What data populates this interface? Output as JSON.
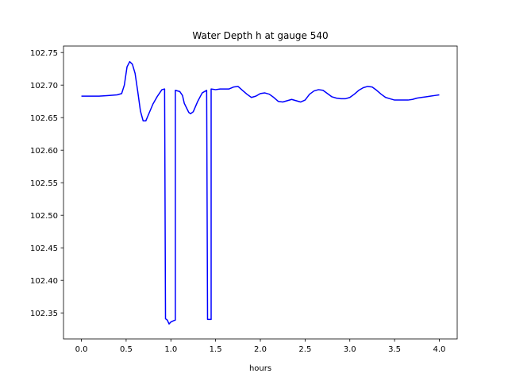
{
  "chart_data": {
    "type": "line",
    "title": "Water Depth h at gauge 540",
    "xlabel": "hours",
    "ylabel": "",
    "xlim": [
      -0.2,
      4.2
    ],
    "ylim": [
      102.31,
      102.76
    ],
    "x_ticks": [
      0.0,
      0.5,
      1.0,
      1.5,
      2.0,
      2.5,
      3.0,
      3.5,
      4.0
    ],
    "x_tick_labels": [
      "0.0",
      "0.5",
      "1.0",
      "1.5",
      "2.0",
      "2.5",
      "3.0",
      "3.5",
      "4.0"
    ],
    "y_ticks": [
      102.35,
      102.4,
      102.45,
      102.5,
      102.55,
      102.6,
      102.65,
      102.7,
      102.75
    ],
    "y_tick_labels": [
      "102.35",
      "102.40",
      "102.45",
      "102.50",
      "102.55",
      "102.60",
      "102.65",
      "102.70",
      "102.75"
    ],
    "grid": false,
    "legend": "none",
    "series": [
      {
        "color": "#0000ff",
        "points": [
          [
            0.0,
            102.683
          ],
          [
            0.1,
            102.683
          ],
          [
            0.2,
            102.683
          ],
          [
            0.3,
            102.684
          ],
          [
            0.4,
            102.685
          ],
          [
            0.45,
            102.687
          ],
          [
            0.48,
            102.7
          ],
          [
            0.51,
            102.728
          ],
          [
            0.54,
            102.736
          ],
          [
            0.57,
            102.732
          ],
          [
            0.6,
            102.718
          ],
          [
            0.63,
            102.69
          ],
          [
            0.66,
            102.66
          ],
          [
            0.69,
            102.645
          ],
          [
            0.72,
            102.645
          ],
          [
            0.76,
            102.658
          ],
          [
            0.8,
            102.671
          ],
          [
            0.85,
            102.683
          ],
          [
            0.9,
            102.693
          ],
          [
            0.93,
            102.694
          ],
          [
            0.94,
            102.341
          ],
          [
            0.96,
            102.339
          ],
          [
            0.98,
            102.333
          ],
          [
            1.0,
            102.336
          ],
          [
            1.03,
            102.338
          ],
          [
            1.05,
            102.339
          ],
          [
            1.05,
            102.692
          ],
          [
            1.1,
            102.69
          ],
          [
            1.13,
            102.684
          ],
          [
            1.15,
            102.672
          ],
          [
            1.2,
            102.658
          ],
          [
            1.22,
            102.656
          ],
          [
            1.25,
            102.659
          ],
          [
            1.3,
            102.675
          ],
          [
            1.35,
            102.688
          ],
          [
            1.4,
            102.692
          ],
          [
            1.41,
            102.34
          ],
          [
            1.45,
            102.34
          ],
          [
            1.45,
            102.694
          ],
          [
            1.5,
            102.693
          ],
          [
            1.55,
            102.694
          ],
          [
            1.6,
            102.694
          ],
          [
            1.65,
            102.694
          ],
          [
            1.7,
            102.697
          ],
          [
            1.75,
            102.698
          ],
          [
            1.8,
            102.692
          ],
          [
            1.85,
            102.686
          ],
          [
            1.9,
            102.681
          ],
          [
            1.95,
            102.683
          ],
          [
            2.0,
            102.687
          ],
          [
            2.05,
            102.688
          ],
          [
            2.1,
            102.686
          ],
          [
            2.15,
            102.681
          ],
          [
            2.2,
            102.675
          ],
          [
            2.25,
            102.674
          ],
          [
            2.3,
            102.676
          ],
          [
            2.35,
            102.678
          ],
          [
            2.4,
            102.676
          ],
          [
            2.45,
            102.674
          ],
          [
            2.5,
            102.677
          ],
          [
            2.55,
            102.686
          ],
          [
            2.6,
            102.691
          ],
          [
            2.65,
            102.693
          ],
          [
            2.7,
            102.692
          ],
          [
            2.75,
            102.687
          ],
          [
            2.8,
            102.682
          ],
          [
            2.85,
            102.68
          ],
          [
            2.9,
            102.679
          ],
          [
            2.95,
            102.679
          ],
          [
            3.0,
            102.681
          ],
          [
            3.05,
            102.686
          ],
          [
            3.1,
            102.692
          ],
          [
            3.15,
            102.696
          ],
          [
            3.2,
            102.698
          ],
          [
            3.25,
            102.697
          ],
          [
            3.3,
            102.692
          ],
          [
            3.35,
            102.686
          ],
          [
            3.4,
            102.681
          ],
          [
            3.45,
            102.679
          ],
          [
            3.5,
            102.677
          ],
          [
            3.55,
            102.677
          ],
          [
            3.6,
            102.677
          ],
          [
            3.65,
            102.677
          ],
          [
            3.7,
            102.678
          ],
          [
            3.75,
            102.68
          ],
          [
            3.8,
            102.681
          ],
          [
            3.85,
            102.682
          ],
          [
            3.9,
            102.683
          ],
          [
            3.95,
            102.684
          ],
          [
            4.0,
            102.685
          ]
        ]
      }
    ]
  }
}
